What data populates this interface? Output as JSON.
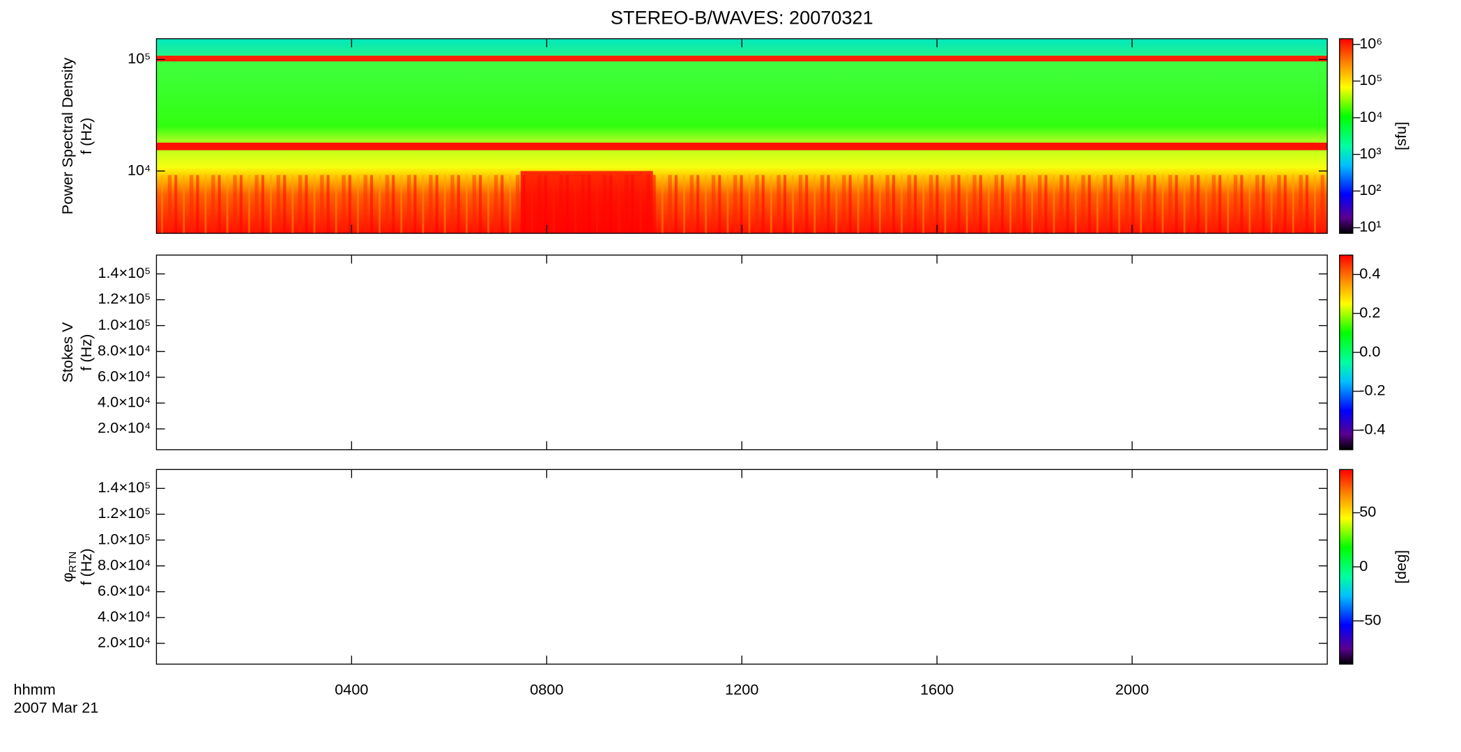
{
  "chart_data": [
    {
      "type": "spectrogram",
      "title": "STEREO-B/WAVES: 20070321",
      "ylabel": [
        "Power Spectral Density",
        "f (Hz)"
      ],
      "ylog": true,
      "ylim": [
        2760,
        153500
      ],
      "yticks": [
        {
          "value": 10000,
          "label": "10⁴"
        },
        {
          "value": 100000,
          "label": "10⁵"
        }
      ],
      "colorbar": {
        "log": true,
        "clim": [
          7,
          1430000
        ],
        "ticks": [
          {
            "value": 10,
            "label": "10¹"
          },
          {
            "value": 100,
            "label": "10²"
          },
          {
            "value": 1000,
            "label": "10³"
          },
          {
            "value": 10000,
            "label": "10⁴"
          },
          {
            "value": 100000,
            "label": "10⁵"
          },
          {
            "value": 1000000,
            "label": "10⁶"
          }
        ],
        "label": "[sfu]"
      }
    },
    {
      "type": "spectrogram",
      "ylabel": [
        "Stokes V",
        "f (Hz)"
      ],
      "ylog": false,
      "ylim": [
        3900,
        154600
      ],
      "yticks": [
        {
          "value": 20000,
          "label": "2.0×10⁴"
        },
        {
          "value": 40000,
          "label": "4.0×10⁴"
        },
        {
          "value": 60000,
          "label": "6.0×10⁴"
        },
        {
          "value": 80000,
          "label": "8.0×10⁴"
        },
        {
          "value": 100000,
          "label": "1.0×10⁵"
        },
        {
          "value": 120000,
          "label": "1.2×10⁵"
        },
        {
          "value": 140000,
          "label": "1.4×10⁵"
        }
      ],
      "colorbar": {
        "log": false,
        "clim": [
          -0.5,
          0.5
        ],
        "ticks": [
          -0.4,
          -0.2,
          {
            "value": 0,
            "label": "0.0"
          },
          0.2,
          0.4
        ]
      }
    },
    {
      "type": "spectrogram",
      "ylabel_symbol": "φ",
      "ylabel_subscript": "RTN",
      "ylabel": [
        "f (Hz)"
      ],
      "ylog": false,
      "ylim": [
        3900,
        154600
      ],
      "yticks": [
        {
          "value": 20000,
          "label": "2.0×10⁴"
        },
        {
          "value": 40000,
          "label": "4.0×10⁴"
        },
        {
          "value": 60000,
          "label": "6.0×10⁴"
        },
        {
          "value": 80000,
          "label": "8.0×10⁴"
        },
        {
          "value": 100000,
          "label": "1.0×10⁵"
        },
        {
          "value": 120000,
          "label": "1.2×10⁵"
        },
        {
          "value": 140000,
          "label": "1.4×10⁵"
        }
      ],
      "colorbar": {
        "log": false,
        "clim": [
          -90,
          90
        ],
        "ticks": [
          -50,
          0,
          50
        ],
        "label": "[deg]"
      },
      "xlabel": [
        "hhmm",
        "2007 Mar 21"
      ],
      "xlim": [
        0,
        24
      ],
      "xticks": [
        {
          "value": 4,
          "label": "0400"
        },
        {
          "value": 8,
          "label": "0800"
        },
        {
          "value": 12,
          "label": "1200"
        },
        {
          "value": 16,
          "label": "1600"
        },
        {
          "value": 20,
          "label": "2000"
        }
      ]
    }
  ]
}
